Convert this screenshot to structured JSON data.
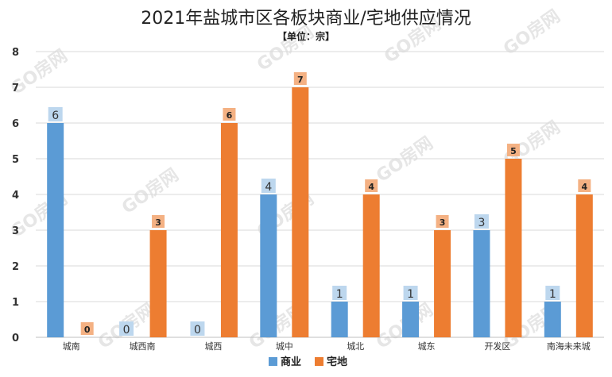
{
  "chart_data": {
    "type": "bar",
    "title": "2021年盐城市区各板块商业/宅地供应情况",
    "subtitle": "【单位：宗】",
    "categories": [
      "城南",
      "城西南",
      "城西",
      "城中",
      "城北",
      "城东",
      "开发区",
      "南海未来城"
    ],
    "series": [
      {
        "name": "商业",
        "color": "#5b9bd5",
        "values": [
          6,
          0,
          0,
          4,
          1,
          1,
          3,
          1
        ]
      },
      {
        "name": "宅地",
        "color": "#ed7d31",
        "values": [
          0,
          3,
          6,
          7,
          4,
          3,
          5,
          4
        ]
      }
    ],
    "ylim": [
      0,
      8
    ],
    "yticks": [
      0,
      1,
      2,
      3,
      4,
      5,
      6,
      7,
      8
    ],
    "grid": true,
    "legend_position": "bottom",
    "label_colors": {
      "commercial_bg": "#bdd7ee",
      "residential_bg": "#f4b183"
    },
    "watermark": "GO房网"
  }
}
